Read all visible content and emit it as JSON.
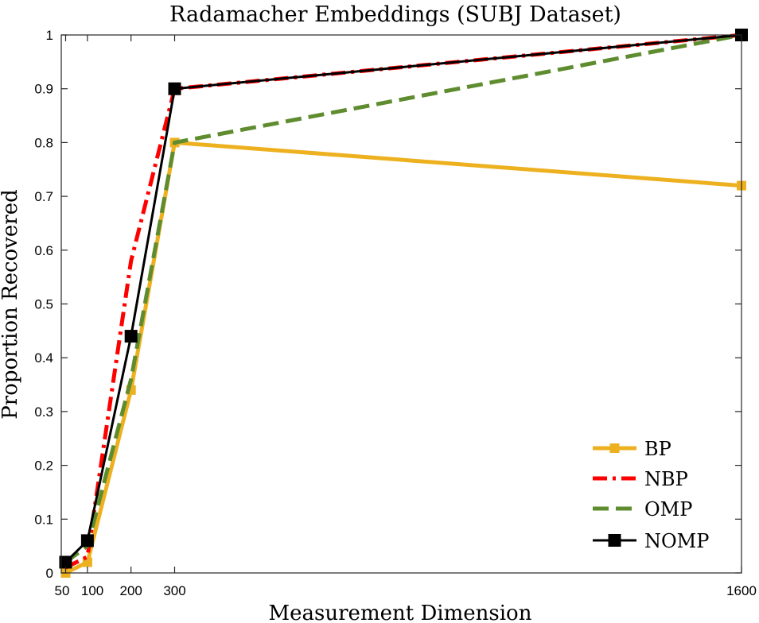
{
  "chart_data": {
    "type": "line",
    "title": "Radamacher Embeddings (SUBJ Dataset)",
    "xlabel": "Measurement Dimension",
    "ylabel": "Proportion Recovered",
    "xlim": [
      40,
      1600
    ],
    "ylim": [
      0,
      1
    ],
    "x_ticks": [
      50,
      100,
      200,
      300,
      1600
    ],
    "x_tick_labels": [
      "50",
      "100",
      "200",
      "300",
      "1600"
    ],
    "y_ticks": [
      0,
      0.1,
      0.2,
      0.3,
      0.4,
      0.5,
      0.6,
      0.7,
      0.8,
      0.9,
      1
    ],
    "y_tick_labels": [
      "0",
      "0.1",
      "0.2",
      "0.3",
      "0.4",
      "0.5",
      "0.6",
      "0.7",
      "0.8",
      "0.9",
      "1"
    ],
    "grid": false,
    "legend_position": "bottom-right",
    "series": [
      {
        "name": "BP",
        "color": "#EDB120",
        "style": "solid",
        "marker": "square-small",
        "x": [
          50,
          100,
          200,
          300,
          1600
        ],
        "values": [
          0.0,
          0.02,
          0.34,
          0.8,
          0.72
        ]
      },
      {
        "name": "NBP",
        "color": "#FF0000",
        "style": "dashdot",
        "marker": "none",
        "x": [
          50,
          100,
          200,
          300,
          1600
        ],
        "values": [
          0.01,
          0.03,
          0.58,
          0.9,
          1.0
        ]
      },
      {
        "name": "OMP",
        "color": "#5E8C2F",
        "style": "dashed",
        "marker": "none",
        "x": [
          50,
          100,
          200,
          300,
          1600
        ],
        "values": [
          0.02,
          0.05,
          0.36,
          0.8,
          1.0
        ]
      },
      {
        "name": "NOMP",
        "color": "#000000",
        "style": "solid",
        "marker": "square-large",
        "x": [
          50,
          100,
          200,
          300,
          1600
        ],
        "values": [
          0.02,
          0.06,
          0.44,
          0.9,
          1.0
        ]
      }
    ]
  }
}
